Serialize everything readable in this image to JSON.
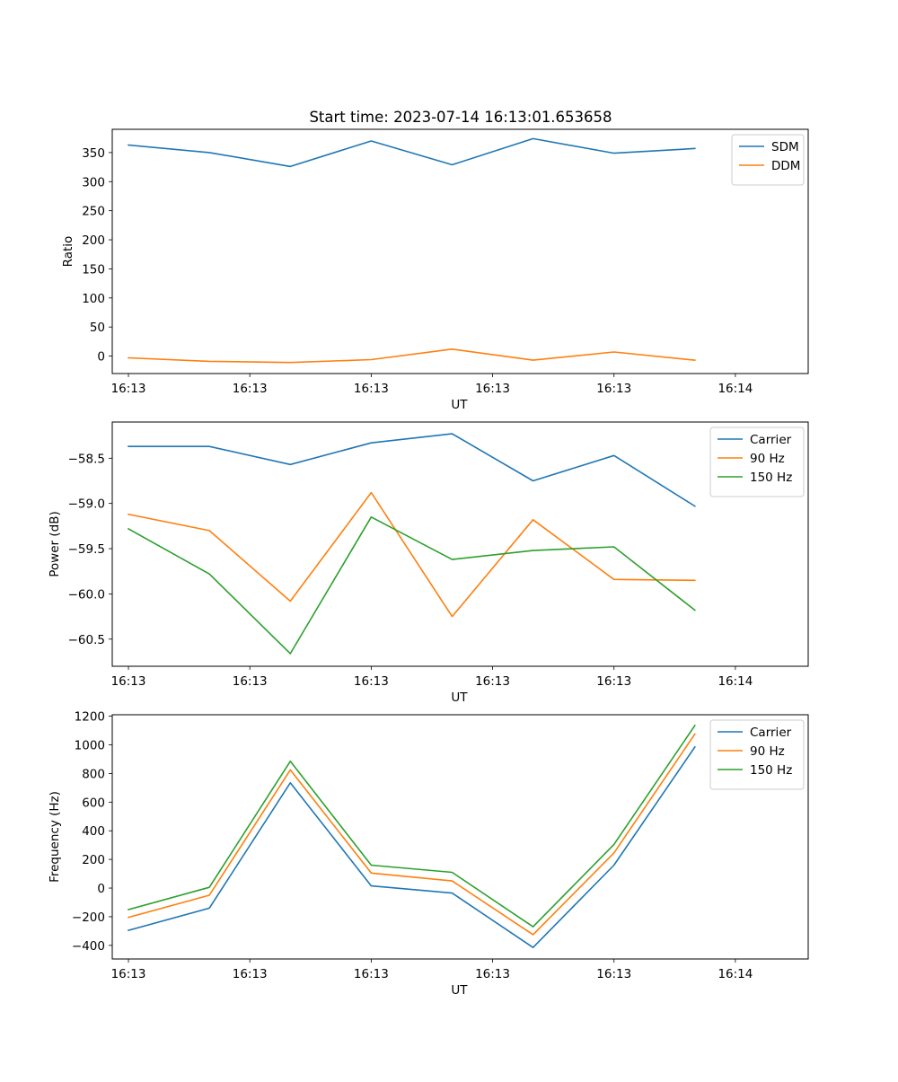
{
  "figure": {
    "title": "Start time: 2023-07-14 16:13:01.653658"
  },
  "chart_data": [
    {
      "type": "line",
      "xlabel": "UT",
      "ylabel": "Ratio",
      "x": [
        1,
        2,
        3,
        4,
        5,
        6,
        7,
        8
      ],
      "xlim": [
        0.8,
        9.4
      ],
      "x_ticks": [
        1,
        2.5,
        4,
        5.5,
        7,
        8.5
      ],
      "x_tick_labels": [
        "16:13",
        "16:13",
        "16:13",
        "16:13",
        "16:13",
        "16:14"
      ],
      "ylim": [
        -30,
        390
      ],
      "y_ticks": [
        0,
        50,
        100,
        150,
        200,
        250,
        300,
        350
      ],
      "y_tick_labels": [
        "0",
        "50",
        "100",
        "150",
        "200",
        "250",
        "300",
        "350"
      ],
      "legend": "top-right",
      "series": [
        {
          "name": "SDM",
          "color": "#1f77b4",
          "values": [
            363,
            350,
            326,
            370,
            329,
            374,
            349,
            357
          ]
        },
        {
          "name": "DDM",
          "color": "#ff7f0e",
          "values": [
            -3,
            -9,
            -11,
            -6,
            12,
            -7,
            7,
            -7
          ]
        }
      ]
    },
    {
      "type": "line",
      "xlabel": "UT",
      "ylabel": "Power (dB)",
      "x": [
        1,
        2,
        3,
        4,
        5,
        6,
        7,
        8
      ],
      "xlim": [
        0.8,
        9.4
      ],
      "x_ticks": [
        1,
        2.5,
        4,
        5.5,
        7,
        8.5
      ],
      "x_tick_labels": [
        "16:13",
        "16:13",
        "16:13",
        "16:13",
        "16:13",
        "16:14"
      ],
      "ylim": [
        -60.8,
        -58.1
      ],
      "y_ticks": [
        -60.5,
        -60.0,
        -59.5,
        -59.0,
        -58.5
      ],
      "y_tick_labels": [
        "−60.5",
        "−60.0",
        "−59.5",
        "−59.0",
        "−58.5"
      ],
      "legend": "top-right",
      "series": [
        {
          "name": "Carrier",
          "color": "#1f77b4",
          "values": [
            -58.37,
            -58.37,
            -58.57,
            -58.33,
            -58.23,
            -58.75,
            -58.47,
            -59.03
          ]
        },
        {
          "name": "90 Hz",
          "color": "#ff7f0e",
          "values": [
            -59.12,
            -59.3,
            -60.08,
            -58.88,
            -60.25,
            -59.18,
            -59.84,
            -59.85
          ]
        },
        {
          "name": "150 Hz",
          "color": "#2ca02c",
          "values": [
            -59.28,
            -59.78,
            -60.66,
            -59.15,
            -59.62,
            -59.52,
            -59.48,
            -60.18
          ]
        }
      ]
    },
    {
      "type": "line",
      "xlabel": "UT",
      "ylabel": "Frequency (Hz)",
      "x": [
        1,
        2,
        3,
        4,
        5,
        6,
        7,
        8
      ],
      "xlim": [
        0.8,
        9.4
      ],
      "x_ticks": [
        1,
        2.5,
        4,
        5.5,
        7,
        8.5
      ],
      "x_tick_labels": [
        "16:13",
        "16:13",
        "16:13",
        "16:13",
        "16:13",
        "16:14"
      ],
      "ylim": [
        -495,
        1210
      ],
      "y_ticks": [
        -400,
        -200,
        0,
        200,
        400,
        600,
        800,
        1000,
        1200
      ],
      "y_tick_labels": [
        "−400",
        "−200",
        "0",
        "200",
        "400",
        "600",
        "800",
        "1000",
        "1200"
      ],
      "legend": "top-right",
      "series": [
        {
          "name": "Carrier",
          "color": "#1f77b4",
          "values": [
            -295,
            -140,
            735,
            15,
            -35,
            -415,
            160,
            985
          ]
        },
        {
          "name": "90 Hz",
          "color": "#ff7f0e",
          "values": [
            -205,
            -50,
            825,
            105,
            50,
            -325,
            245,
            1075
          ]
        },
        {
          "name": "150 Hz",
          "color": "#2ca02c",
          "values": [
            -150,
            5,
            885,
            160,
            110,
            -270,
            305,
            1135
          ]
        }
      ]
    }
  ]
}
